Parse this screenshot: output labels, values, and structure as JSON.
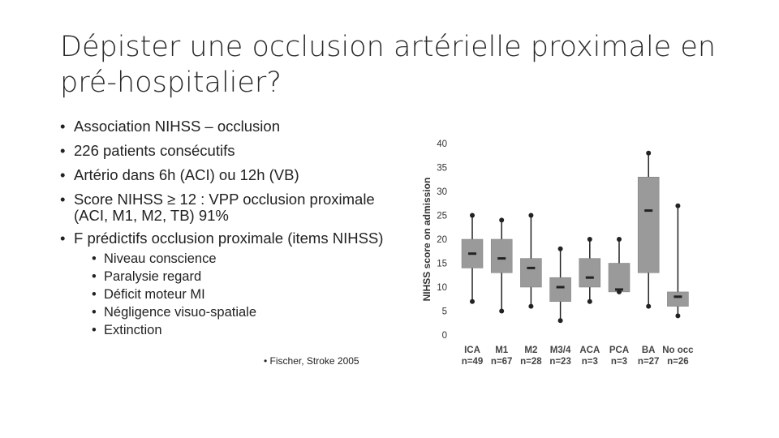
{
  "slide": {
    "title": "Dépister une occlusion artérielle proximale en pré-hospitalier?",
    "bullets": [
      "Association NIHSS – occlusion",
      "226 patients consécutifs",
      "Artério dans 6h (ACI) ou 12h (VB)",
      "Score NIHSS ≥ 12 : VPP occlusion proximale (ACI, M1, M2, TB) 91%",
      "F prédictifs occlusion proximale (items NIHSS)"
    ],
    "sub_bullets": [
      "Niveau conscience",
      "Paralysie regard",
      "Déficit moteur MI",
      "Négligence visuo-spatiale",
      "Extinction"
    ],
    "source": "Fischer, Stroke 2005"
  },
  "chart_data": {
    "type": "boxplot",
    "ylabel": "NIHSS score on admission",
    "ylim": [
      0,
      40
    ],
    "yticks": [
      0,
      5,
      10,
      15,
      20,
      25,
      30,
      35,
      40
    ],
    "colors": {
      "box": "#9a9a9a",
      "line": "#222222"
    },
    "categories": [
      {
        "name": "ICA",
        "n": "n=49",
        "min": 7,
        "q1": 14,
        "median": 17,
        "q3": 20,
        "max": 25
      },
      {
        "name": "M1",
        "n": "n=67",
        "min": 5,
        "q1": 13,
        "median": 16,
        "q3": 20,
        "max": 24
      },
      {
        "name": "M2",
        "n": "n=28",
        "min": 6,
        "q1": 10,
        "median": 14,
        "q3": 16,
        "max": 25
      },
      {
        "name": "M3/4",
        "n": "n=23",
        "min": 3,
        "q1": 7,
        "median": 10,
        "q3": 12,
        "max": 18
      },
      {
        "name": "ACA",
        "n": "n=3",
        "min": 7,
        "q1": 10,
        "median": 12,
        "q3": 16,
        "max": 20
      },
      {
        "name": "PCA",
        "n": "n=3",
        "min": 9,
        "q1": 9,
        "median": 9.5,
        "q3": 15,
        "max": 20
      },
      {
        "name": "BA",
        "n": "n=27",
        "min": 6,
        "q1": 13,
        "median": 26,
        "q3": 33,
        "max": 38
      },
      {
        "name": "No occ",
        "n": "n=26",
        "min": 4,
        "q1": 6,
        "median": 8,
        "q3": 9,
        "max": 27
      }
    ]
  }
}
